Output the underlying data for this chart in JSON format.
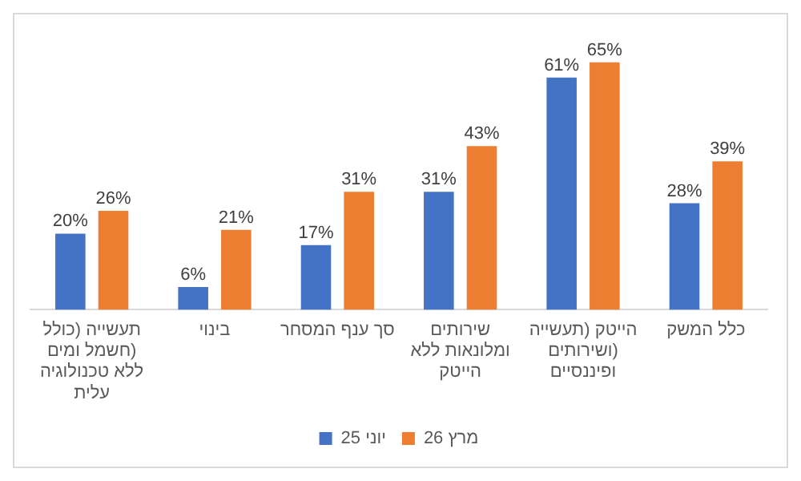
{
  "chart_data": {
    "type": "bar",
    "categories": [
      "תעשייה (כולל חשמל ומים) ללא טכנולוגיה עלית",
      "בינוי",
      "סך ענף המסחר",
      "שירותים ומלונאות ללא הייטק",
      "הייטק (תעשייה ושירותים) ופיננסיים",
      "כלל המשק"
    ],
    "series": [
      {
        "name": "יוני 25",
        "color": "#4472c4",
        "values": [
          20,
          6,
          17,
          31,
          61,
          28
        ],
        "value_labels": [
          "20%",
          "6%",
          "17%",
          "31%",
          "61%",
          "28%"
        ]
      },
      {
        "name": "מרץ 26",
        "color": "#ed7d31",
        "values": [
          26,
          21,
          31,
          43,
          65,
          39
        ],
        "value_labels": [
          "26%",
          "21%",
          "31%",
          "43%",
          "65%",
          "39%"
        ]
      }
    ],
    "legend": "bottom",
    "grid": false
  }
}
